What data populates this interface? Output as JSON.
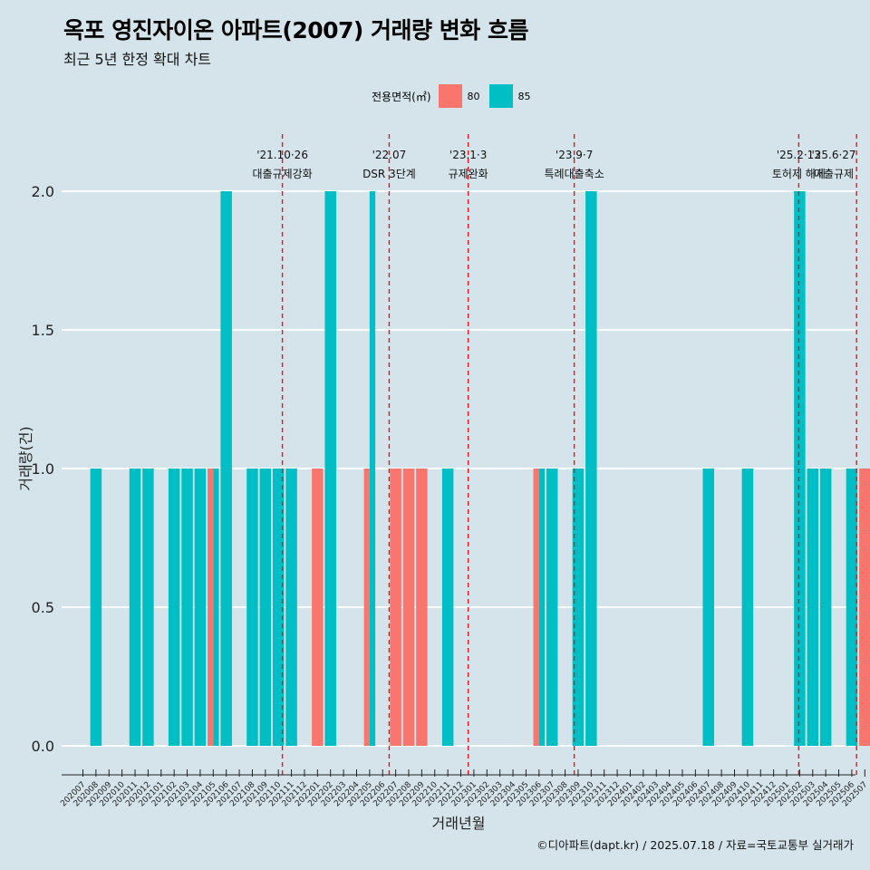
{
  "title": "옥포 영진자이온 아파트(2007) 거래량 변화 흐름",
  "subtitle": "최근 5년 한정 확대 차트",
  "legend": {
    "title": "전용면적(㎡)",
    "items": [
      {
        "label": "80",
        "color": "#F8766D"
      },
      {
        "label": "85",
        "color": "#00BFC4"
      }
    ]
  },
  "caption": "©디아파트(dapt.kr) / 2025.07.18 / 자료=국토교통부 실거래가",
  "chart_data": {
    "type": "bar",
    "xlabel": "거래년월",
    "ylabel": "거래량(건)",
    "ylim": [
      0,
      2.2
    ],
    "yticks": [
      "0.0",
      "0.5",
      "1.0",
      "1.5",
      "2.0"
    ],
    "categories": [
      "202007",
      "202008",
      "202009",
      "202010",
      "202011",
      "202012",
      "202101",
      "202102",
      "202103",
      "202104",
      "202105",
      "202106",
      "202107",
      "202108",
      "202109",
      "202110",
      "202111",
      "202112",
      "202201",
      "202202",
      "202203",
      "202204",
      "202205",
      "202206",
      "202207",
      "202208",
      "202209",
      "202210",
      "202211",
      "202212",
      "202301",
      "202302",
      "202303",
      "202304",
      "202305",
      "202306",
      "202307",
      "202308",
      "202309",
      "202310",
      "202311",
      "202312",
      "202401",
      "202402",
      "202403",
      "202404",
      "202405",
      "202406",
      "202407",
      "202408",
      "202409",
      "202410",
      "202411",
      "202412",
      "202501",
      "202502",
      "202503",
      "202504",
      "202505",
      "202506",
      "202507"
    ],
    "bars": [
      {
        "month": "202008",
        "series": "85",
        "value": 1
      },
      {
        "month": "202011",
        "series": "85",
        "value": 1
      },
      {
        "month": "202012",
        "series": "85",
        "value": 1
      },
      {
        "month": "202102",
        "series": "85",
        "value": 1
      },
      {
        "month": "202103",
        "series": "85",
        "value": 1
      },
      {
        "month": "202104",
        "series": "85",
        "value": 1
      },
      {
        "month": "202105",
        "series": "80",
        "value": 1
      },
      {
        "month": "202105",
        "series": "85",
        "value": 1
      },
      {
        "month": "202106",
        "series": "85",
        "value": 2
      },
      {
        "month": "202108",
        "series": "85",
        "value": 1
      },
      {
        "month": "202109",
        "series": "85",
        "value": 1
      },
      {
        "month": "202110",
        "series": "85",
        "value": 1
      },
      {
        "month": "202111",
        "series": "85",
        "value": 1
      },
      {
        "month": "202201",
        "series": "80",
        "value": 1
      },
      {
        "month": "202202",
        "series": "85",
        "value": 2
      },
      {
        "month": "202205",
        "series": "80",
        "value": 1
      },
      {
        "month": "202205",
        "series": "85",
        "value": 2
      },
      {
        "month": "202207",
        "series": "80",
        "value": 1
      },
      {
        "month": "202208",
        "series": "80",
        "value": 1
      },
      {
        "month": "202209",
        "series": "80",
        "value": 1
      },
      {
        "month": "202211",
        "series": "85",
        "value": 1
      },
      {
        "month": "202306",
        "series": "80",
        "value": 1
      },
      {
        "month": "202306",
        "series": "85",
        "value": 1
      },
      {
        "month": "202307",
        "series": "85",
        "value": 1
      },
      {
        "month": "202309",
        "series": "85",
        "value": 1
      },
      {
        "month": "202310",
        "series": "85",
        "value": 2
      },
      {
        "month": "202407",
        "series": "85",
        "value": 1
      },
      {
        "month": "202410",
        "series": "85",
        "value": 1
      },
      {
        "month": "202502",
        "series": "85",
        "value": 2
      },
      {
        "month": "202503",
        "series": "85",
        "value": 1
      },
      {
        "month": "202504",
        "series": "85",
        "value": 1
      },
      {
        "month": "202506",
        "series": "85",
        "value": 1
      },
      {
        "month": "202507",
        "series": "80",
        "value": 1
      }
    ],
    "events": [
      {
        "date": "2021-10-26",
        "line1": "'21.10·26",
        "line2": "대출규제강화"
      },
      {
        "date": "2022-07-01",
        "line1": "'22.07",
        "line2": "DSR 3단계"
      },
      {
        "date": "2023-01-03",
        "line1": "'23.1·3",
        "line2": "규제완화"
      },
      {
        "date": "2023-09-07",
        "line1": "'23.9·7",
        "line2": "특례대출축소"
      },
      {
        "date": "2025-02-13",
        "line1": "'25.2·13",
        "line2": "토허제 해제"
      },
      {
        "date": "2025-06-27",
        "line1": "'25.6·27",
        "line2": "대출규제"
      }
    ],
    "grid": true,
    "legend_position": "top"
  }
}
